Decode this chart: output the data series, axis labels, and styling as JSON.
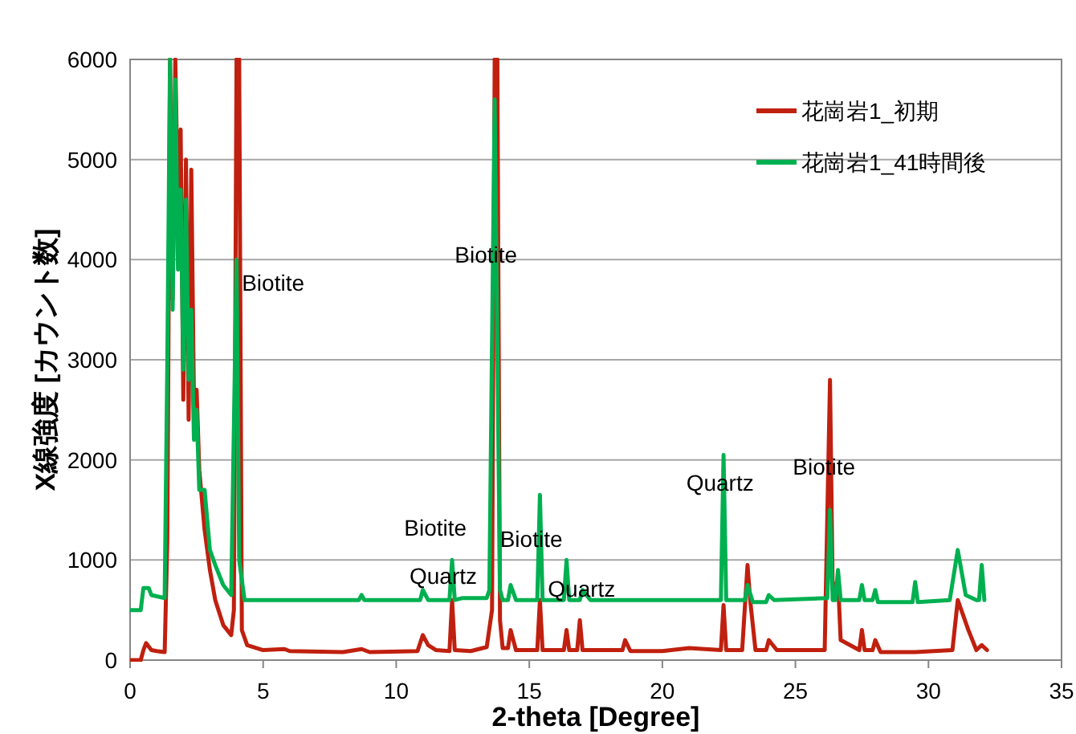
{
  "chart_data": {
    "type": "line",
    "xlabel": "2-theta [Degree]",
    "ylabel": "X線強度 [カウント数]",
    "xlim": [
      0,
      35
    ],
    "ylim": [
      0,
      6000
    ],
    "xticks": [
      0,
      5,
      10,
      15,
      20,
      25,
      30,
      35
    ],
    "yticks": [
      0,
      1000,
      2000,
      3000,
      4000,
      5000,
      6000
    ],
    "grid": "y",
    "legend": "top right",
    "series": [
      {
        "name": "花崗岩1_初期",
        "color": "#c0200f",
        "x": [
          0,
          0.4,
          0.5,
          0.6,
          0.8,
          1.0,
          1.3,
          1.4,
          1.5,
          1.6,
          1.7,
          1.8,
          1.9,
          2.0,
          2.1,
          2.2,
          2.3,
          2.4,
          2.5,
          2.6,
          2.8,
          3.0,
          3.2,
          3.5,
          3.8,
          3.9,
          4.0,
          4.1,
          4.2,
          4.4,
          5,
          5.8,
          6,
          8,
          8.7,
          9,
          10.8,
          11,
          11.2,
          11.5,
          12.0,
          12.1,
          12.2,
          12.8,
          13.4,
          13.6,
          13.7,
          13.8,
          13.9,
          14.0,
          14.2,
          14.3,
          14.5,
          15.3,
          15.4,
          15.5,
          16.3,
          16.4,
          16.5,
          16.8,
          16.9,
          17,
          18.5,
          18.6,
          18.8,
          20,
          21,
          22.2,
          22.3,
          22.4,
          23.0,
          23.2,
          23.3,
          23.5,
          23.9,
          24,
          24.3,
          26.1,
          26.3,
          26.4,
          26.6,
          26.7,
          27.4,
          27.5,
          27.6,
          27.9,
          28,
          28.2,
          29.5,
          30.9,
          31.1,
          31.5,
          31.8,
          32.0,
          32.2
        ],
        "values": [
          0,
          0,
          100,
          170,
          100,
          90,
          80,
          1200,
          6000,
          3600,
          6000,
          4500,
          5300,
          2600,
          5000,
          2400,
          4900,
          2600,
          2700,
          1900,
          1300,
          900,
          600,
          350,
          250,
          500,
          6000,
          6000,
          300,
          150,
          100,
          110,
          90,
          80,
          110,
          80,
          90,
          250,
          150,
          100,
          90,
          600,
          100,
          90,
          130,
          500,
          6000,
          6000,
          400,
          120,
          120,
          300,
          100,
          100,
          600,
          100,
          100,
          300,
          100,
          100,
          400,
          100,
          100,
          200,
          90,
          90,
          120,
          100,
          550,
          100,
          100,
          950,
          600,
          100,
          100,
          200,
          100,
          100,
          2800,
          700,
          800,
          200,
          100,
          300,
          100,
          100,
          200,
          80,
          80,
          100,
          600,
          300,
          100,
          150,
          100
        ]
      },
      {
        "name": "花崗岩1_41時間後",
        "color": "#00b050",
        "x": [
          0,
          0.4,
          0.5,
          0.7,
          0.8,
          1.3,
          1.4,
          1.5,
          1.6,
          1.7,
          1.8,
          1.9,
          2.0,
          2.1,
          2.2,
          2.3,
          2.4,
          2.5,
          2.6,
          2.8,
          3.0,
          3.2,
          3.5,
          3.8,
          4.0,
          4.1,
          4.3,
          6,
          8.6,
          8.7,
          8.8,
          10.9,
          11,
          11.2,
          12.0,
          12.1,
          12.2,
          12.5,
          13.4,
          13.5,
          13.7,
          13.9,
          14.0,
          14.2,
          14.3,
          14.5,
          15.3,
          15.4,
          15.5,
          16.3,
          16.4,
          16.5,
          16.9,
          17,
          17.3,
          22.2,
          22.3,
          22.4,
          23.1,
          23.2,
          23.4,
          23.9,
          24,
          24.2,
          26.2,
          26.3,
          26.4,
          26.5,
          26.6,
          26.7,
          27.4,
          27.5,
          27.6,
          27.9,
          28,
          28.1,
          29.4,
          29.5,
          29.6,
          30.8,
          31.1,
          31.4,
          31.8,
          31.9,
          32.0,
          32.1
        ],
        "values": [
          500,
          500,
          720,
          720,
          650,
          620,
          3000,
          6000,
          3500,
          5800,
          3900,
          4700,
          2900,
          4600,
          2800,
          3500,
          2200,
          2500,
          1700,
          1700,
          1100,
          950,
          750,
          650,
          4000,
          1000,
          600,
          600,
          600,
          650,
          600,
          600,
          700,
          600,
          600,
          1000,
          600,
          620,
          620,
          700,
          5600,
          700,
          600,
          600,
          750,
          600,
          600,
          1650,
          600,
          600,
          1000,
          600,
          600,
          700,
          600,
          600,
          2050,
          600,
          600,
          750,
          580,
          580,
          650,
          600,
          620,
          1500,
          600,
          600,
          900,
          600,
          600,
          750,
          600,
          600,
          700,
          580,
          580,
          780,
          580,
          600,
          1100,
          650,
          600,
          600,
          950,
          600
        ]
      }
    ],
    "annotations": [
      {
        "text": "Biotite",
        "x": 4.2,
        "y": 3750
      },
      "Biotite",
      "Biotite",
      "Quartz",
      {
        "text": "Biotite",
        "x": 13.9,
        "y": 1190
      },
      {
        "text": "Quartz",
        "x": 15.7,
        "y": 690
      },
      "Quartz",
      "Biotite"
    ]
  }
}
